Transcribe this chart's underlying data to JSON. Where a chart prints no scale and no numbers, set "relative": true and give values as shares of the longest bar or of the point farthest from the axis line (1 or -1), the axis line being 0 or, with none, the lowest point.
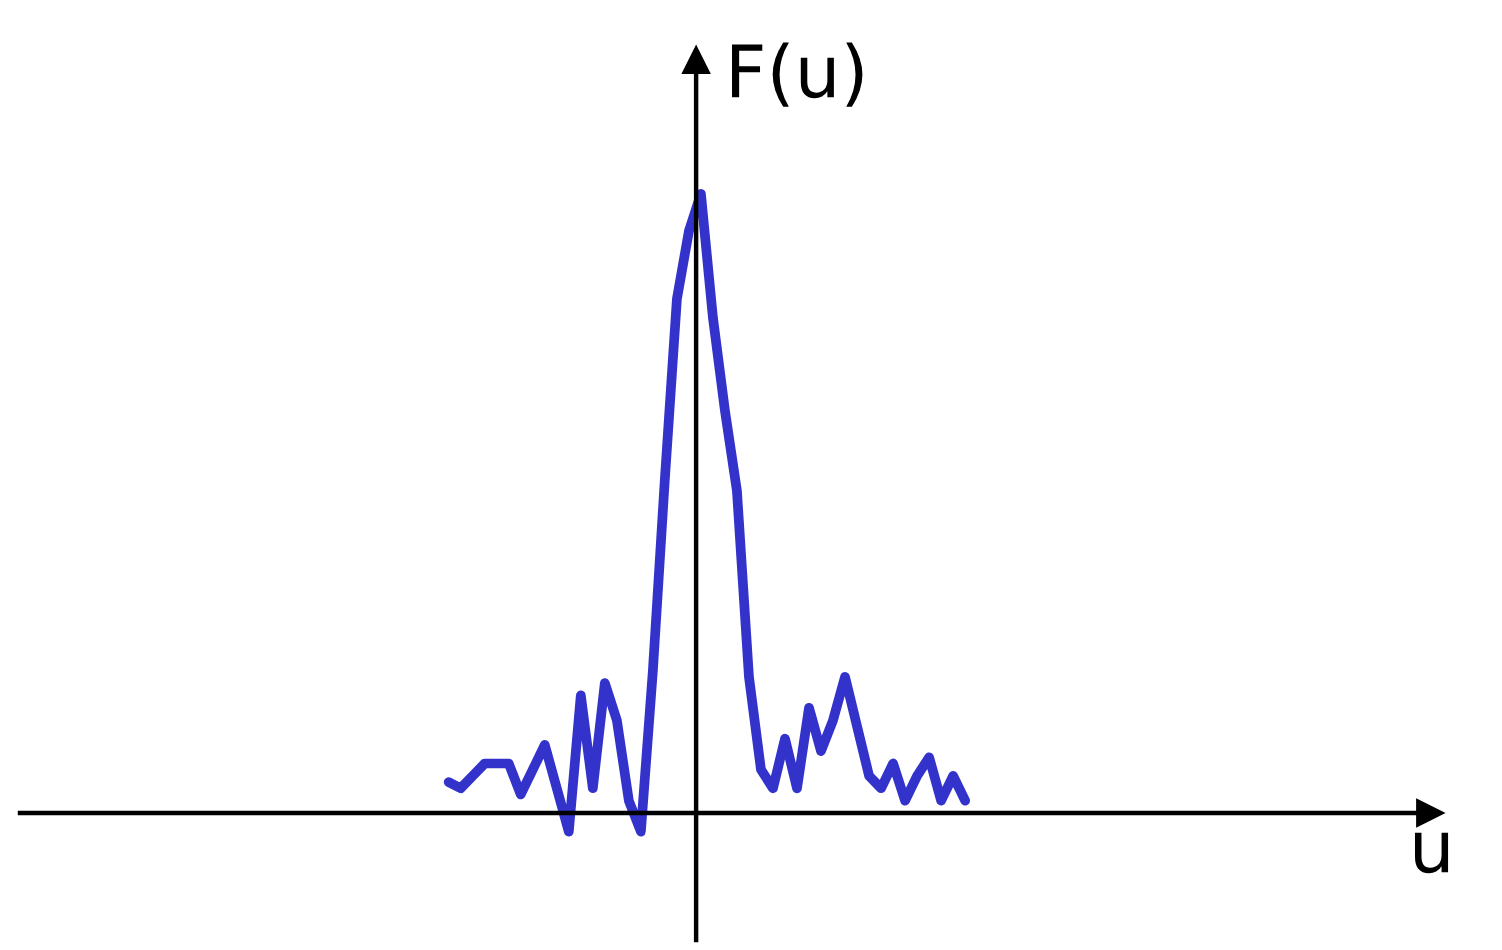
{
  "chart_data": {
    "type": "line",
    "relative": true,
    "annotations": [
      "u"
    ],
    "ylabel": "F(u)",
    "legend": false,
    "marker": "none",
    "line_style": "solid",
    "categories": [
      null,
      null,
      null,
      null,
      null,
      null,
      null,
      null,
      null,
      null,
      null,
      null,
      null,
      null,
      null,
      null,
      null,
      null,
      null,
      null,
      null,
      null,
      null,
      null,
      null,
      null,
      null,
      null,
      null,
      null,
      null,
      null,
      null,
      null,
      null,
      null,
      null,
      null,
      null,
      null,
      null,
      null,
      null,
      null
    ],
    "series": [
      {
        "color": "#3333cc",
        "values": [
          0.05,
          0.04,
          0.06,
          0.08,
          0.08,
          0.08,
          0.03,
          0.07,
          0.11,
          0.04,
          -0.03,
          0.19,
          0.04,
          0.21,
          0.15,
          0.02,
          -0.03,
          0.23,
          0.54,
          0.83,
          0.94,
          1.0,
          0.8,
          0.65,
          0.52,
          0.22,
          0.07,
          0.04,
          0.12,
          0.04,
          0.17,
          0.1,
          0.15,
          0.22,
          0.14,
          0.06,
          0.04,
          0.08,
          0.02,
          0.06,
          0.09,
          0.02,
          0.06,
          0.02
        ]
      }
    ]
  }
}
